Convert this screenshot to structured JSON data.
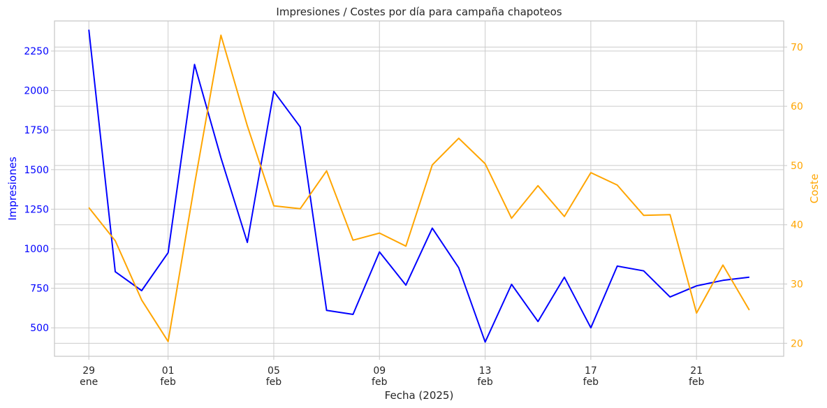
{
  "chart_data": {
    "type": "line",
    "title": "Impresiones / Costes por día para campaña chapoteos",
    "xlabel": "Fecha (2025)",
    "ylabel_left": "Impresiones",
    "ylabel_right": "Coste",
    "grid": true,
    "colors": {
      "impresiones": "#0000ff",
      "coste": "#ffa500",
      "grid": "#cccccc",
      "axis": "#c8c8c8",
      "text": "#262626"
    },
    "x_dates": [
      "2025-01-29",
      "2025-01-30",
      "2025-01-31",
      "2025-02-01",
      "2025-02-02",
      "2025-02-03",
      "2025-02-04",
      "2025-02-05",
      "2025-02-06",
      "2025-02-07",
      "2025-02-08",
      "2025-02-09",
      "2025-02-10",
      "2025-02-11",
      "2025-02-12",
      "2025-02-13",
      "2025-02-14",
      "2025-02-15",
      "2025-02-16",
      "2025-02-17",
      "2025-02-18",
      "2025-02-19",
      "2025-02-20",
      "2025-02-21",
      "2025-02-22",
      "2025-02-23"
    ],
    "x_ticks": [
      {
        "date": "2025-01-29",
        "day": "29",
        "month": "ene"
      },
      {
        "date": "2025-02-01",
        "day": "01",
        "month": "feb"
      },
      {
        "date": "2025-02-05",
        "day": "05",
        "month": "feb"
      },
      {
        "date": "2025-02-09",
        "day": "09",
        "month": "feb"
      },
      {
        "date": "2025-02-13",
        "day": "13",
        "month": "feb"
      },
      {
        "date": "2025-02-17",
        "day": "17",
        "month": "feb"
      },
      {
        "date": "2025-02-21",
        "day": "21",
        "month": "feb"
      }
    ],
    "left_axis": {
      "ylim": [
        320,
        2440
      ],
      "ticks": [
        500,
        750,
        1000,
        1250,
        1500,
        1750,
        2000,
        2250
      ]
    },
    "right_axis": {
      "ylim": [
        17.8,
        74.4
      ],
      "ticks": [
        20,
        30,
        40,
        50,
        60,
        70
      ]
    },
    "series": [
      {
        "key": "impresiones",
        "axis": "left",
        "values": [
          2385,
          855,
          735,
          975,
          2165,
          1575,
          1040,
          1995,
          1770,
          610,
          585,
          980,
          770,
          1130,
          880,
          410,
          775,
          540,
          820,
          500,
          890,
          860,
          695,
          765,
          800,
          820
        ]
      },
      {
        "key": "coste",
        "axis": "right",
        "values": [
          42.9,
          37.3,
          27.3,
          20.3,
          46.8,
          72.0,
          56.7,
          43.2,
          42.7,
          49.1,
          37.4,
          38.6,
          36.4,
          50.1,
          54.6,
          50.3,
          41.1,
          46.6,
          41.4,
          48.8,
          46.7,
          41.6,
          41.7,
          25.1,
          33.2,
          25.6
        ]
      }
    ]
  }
}
